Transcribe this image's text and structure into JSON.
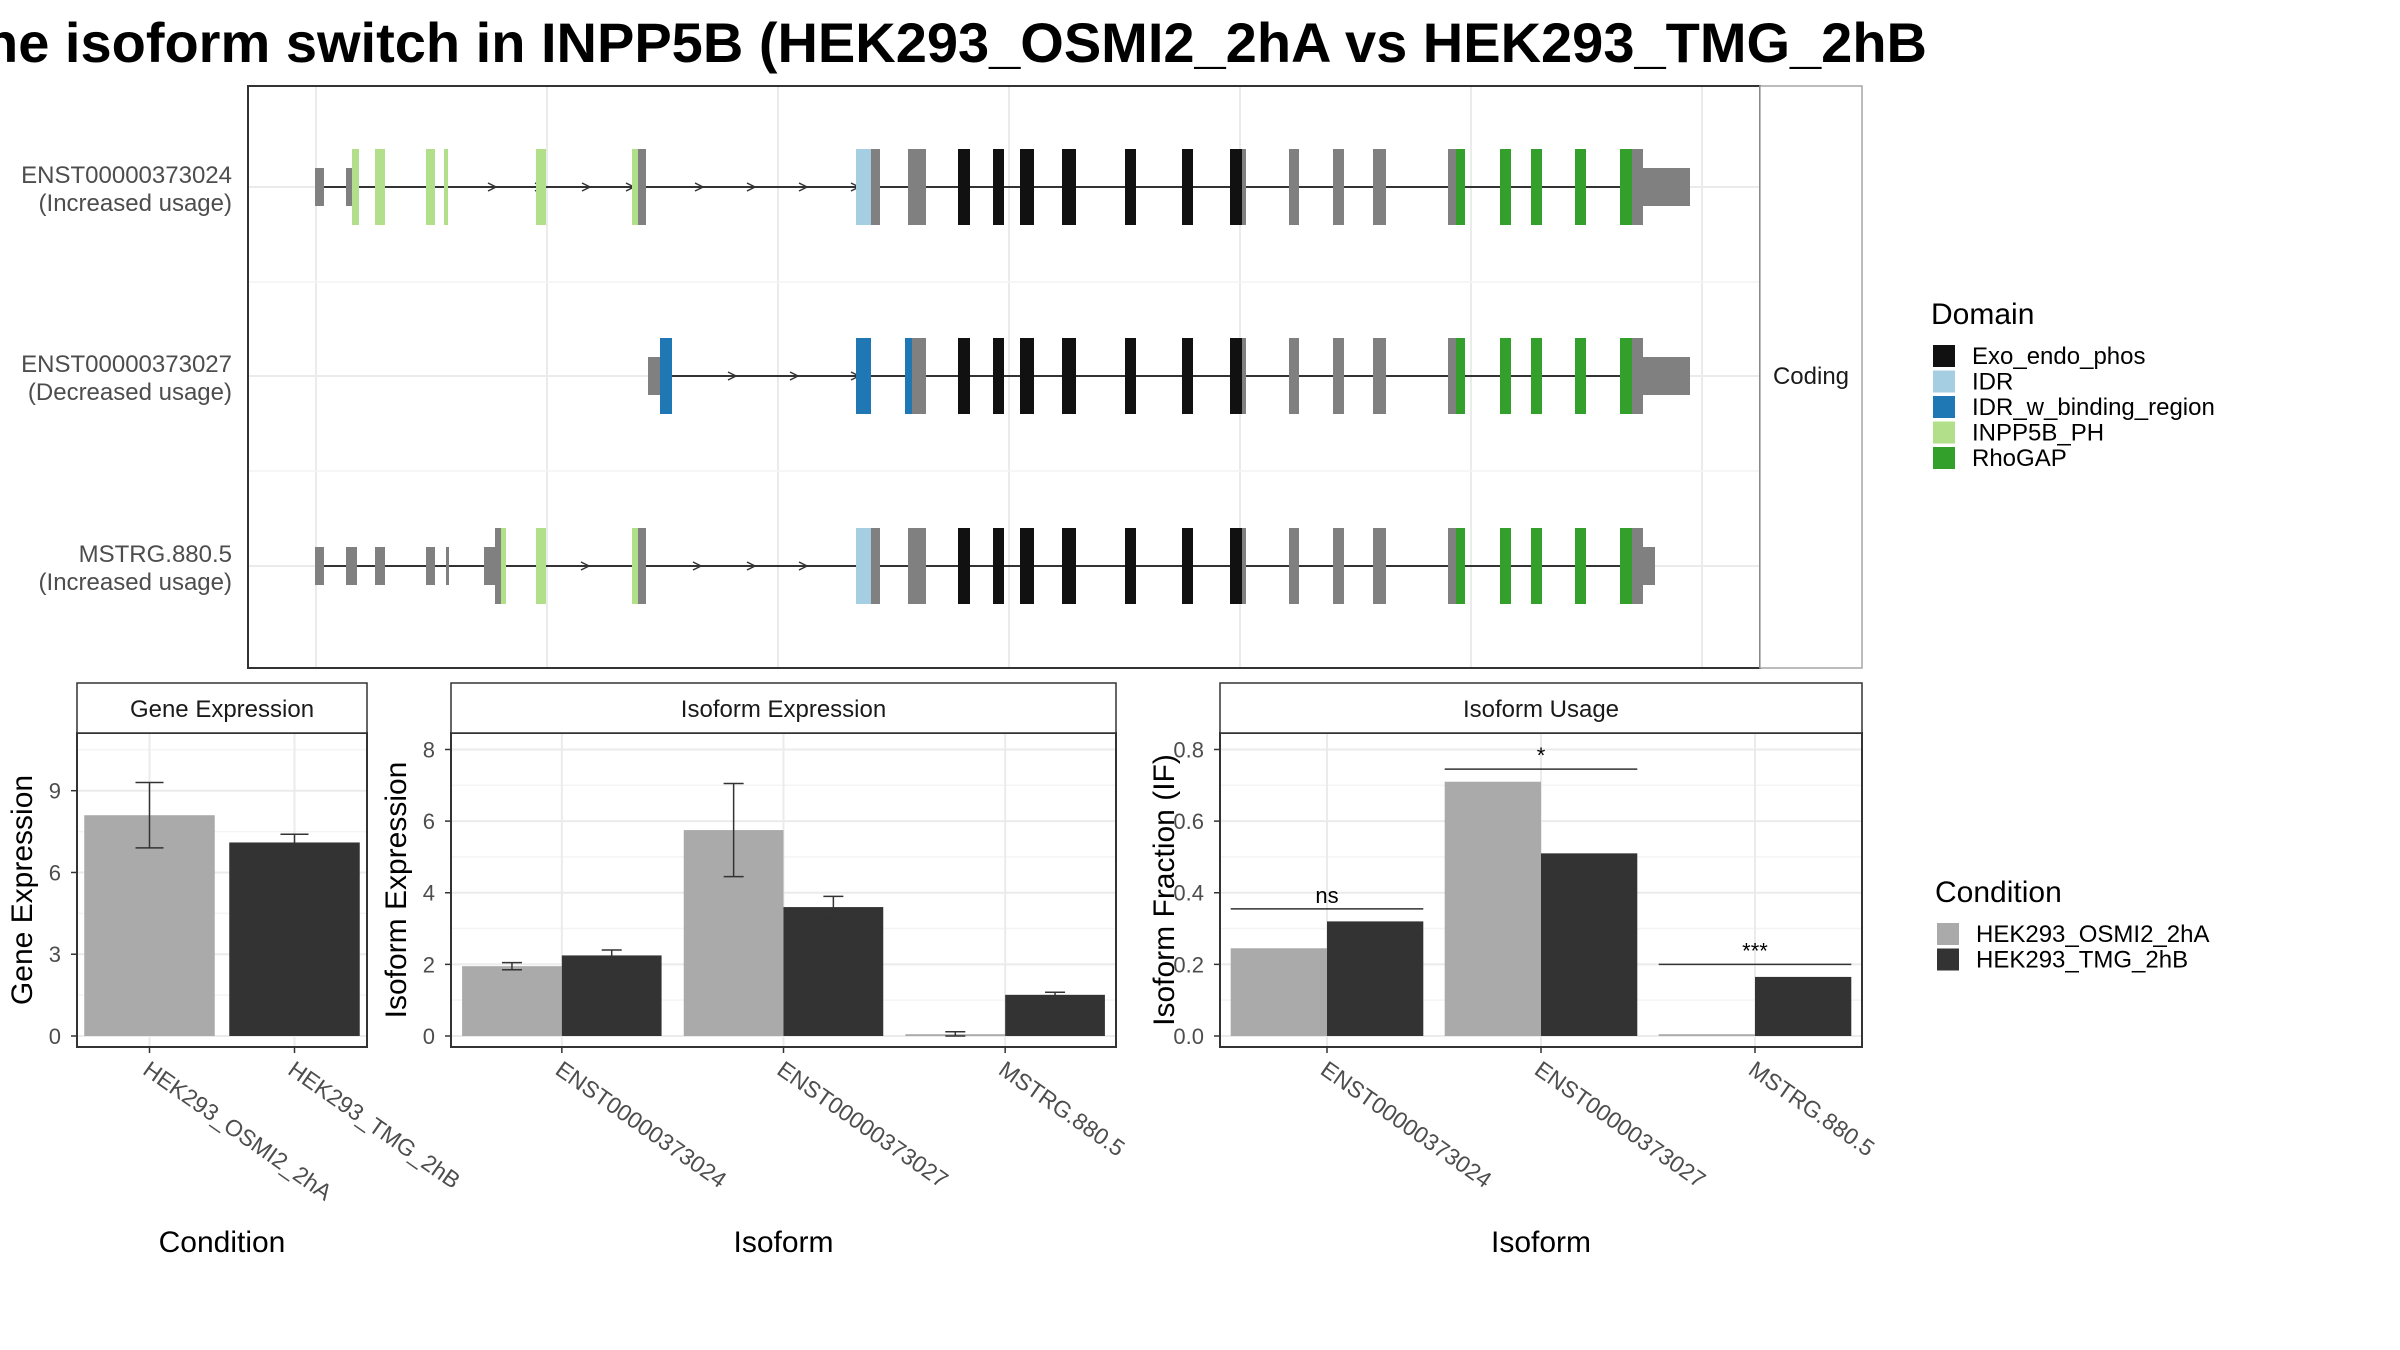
{
  "title": "he isoform switch in INPP5B (HEK293_OSMI2_2hA vs HEK293_TMG_2hB",
  "structure": {
    "facet_label": "Coding",
    "transcripts": [
      {
        "id": "ENST00000373024",
        "usage": "(Increased usage)"
      },
      {
        "id": "ENST00000373027",
        "usage": "(Decreased usage)"
      },
      {
        "id": "MSTRG.880.5",
        "usage": "(Increased usage)"
      }
    ]
  },
  "legend_domain": {
    "title": "Domain",
    "items": [
      {
        "label": "Exo_endo_phos",
        "color": "#111111"
      },
      {
        "label": "IDR",
        "color": "#a6cee3"
      },
      {
        "label": "IDR_w_binding_region",
        "color": "#1f78b4"
      },
      {
        "label": "INPP5B_PH",
        "color": "#b2df8a"
      },
      {
        "label": "RhoGAP",
        "color": "#33a02c"
      }
    ]
  },
  "legend_condition": {
    "title": "Condition",
    "items": [
      {
        "label": "HEK293_OSMI2_2hA",
        "color": "#aaaaaa"
      },
      {
        "label": "HEK293_TMG_2hB",
        "color": "#333333"
      }
    ]
  },
  "chart_data": [
    {
      "type": "bar",
      "title": "Gene Expression",
      "xlabel": "Condition",
      "ylabel": "Gene Expression",
      "categories": [
        "HEK293_OSMI2_2hA",
        "HEK293_TMG_2hB"
      ],
      "values": [
        8.1,
        7.1
      ],
      "errors": [
        [
          6.9,
          9.3
        ],
        [
          6.8,
          7.4
        ]
      ],
      "yticks": [
        0,
        3,
        6,
        9
      ],
      "ylim": [
        0,
        11.3
      ]
    },
    {
      "type": "bar",
      "title": "Isoform Expression",
      "xlabel": "Isoform",
      "ylabel": "Isoform Expression",
      "categories": [
        "ENST00000373024",
        "ENST00000373027",
        "MSTRG.880.5"
      ],
      "series": [
        {
          "name": "HEK293_OSMI2_2hA",
          "values": [
            1.95,
            5.75,
            0.05
          ],
          "errors": [
            [
              1.85,
              2.05
            ],
            [
              4.45,
              7.05
            ],
            [
              0.0,
              0.12
            ]
          ]
        },
        {
          "name": "HEK293_TMG_2hB",
          "values": [
            2.25,
            3.6,
            1.15
          ],
          "errors": [
            [
              2.1,
              2.4
            ],
            [
              3.3,
              3.9
            ],
            [
              1.08,
              1.22
            ]
          ]
        }
      ],
      "yticks": [
        0,
        2,
        4,
        6,
        8
      ],
      "ylim": [
        0,
        8.6
      ]
    },
    {
      "type": "bar",
      "title": "Isoform Usage",
      "xlabel": "Isoform",
      "ylabel": "Isoform Fraction (IF)",
      "categories": [
        "ENST00000373024",
        "ENST00000373027",
        "MSTRG.880.5"
      ],
      "series": [
        {
          "name": "HEK293_OSMI2_2hA",
          "values": [
            0.245,
            0.71,
            0.005
          ]
        },
        {
          "name": "HEK293_TMG_2hB",
          "values": [
            0.32,
            0.51,
            0.165
          ]
        }
      ],
      "significance": [
        {
          "label": "ns",
          "y": 0.355
        },
        {
          "label": "*",
          "y": 0.745
        },
        {
          "label": "***",
          "y": 0.2
        }
      ],
      "yticks": [
        0.0,
        0.2,
        0.4,
        0.6,
        0.8
      ],
      "ylim": [
        0,
        0.86
      ]
    }
  ]
}
